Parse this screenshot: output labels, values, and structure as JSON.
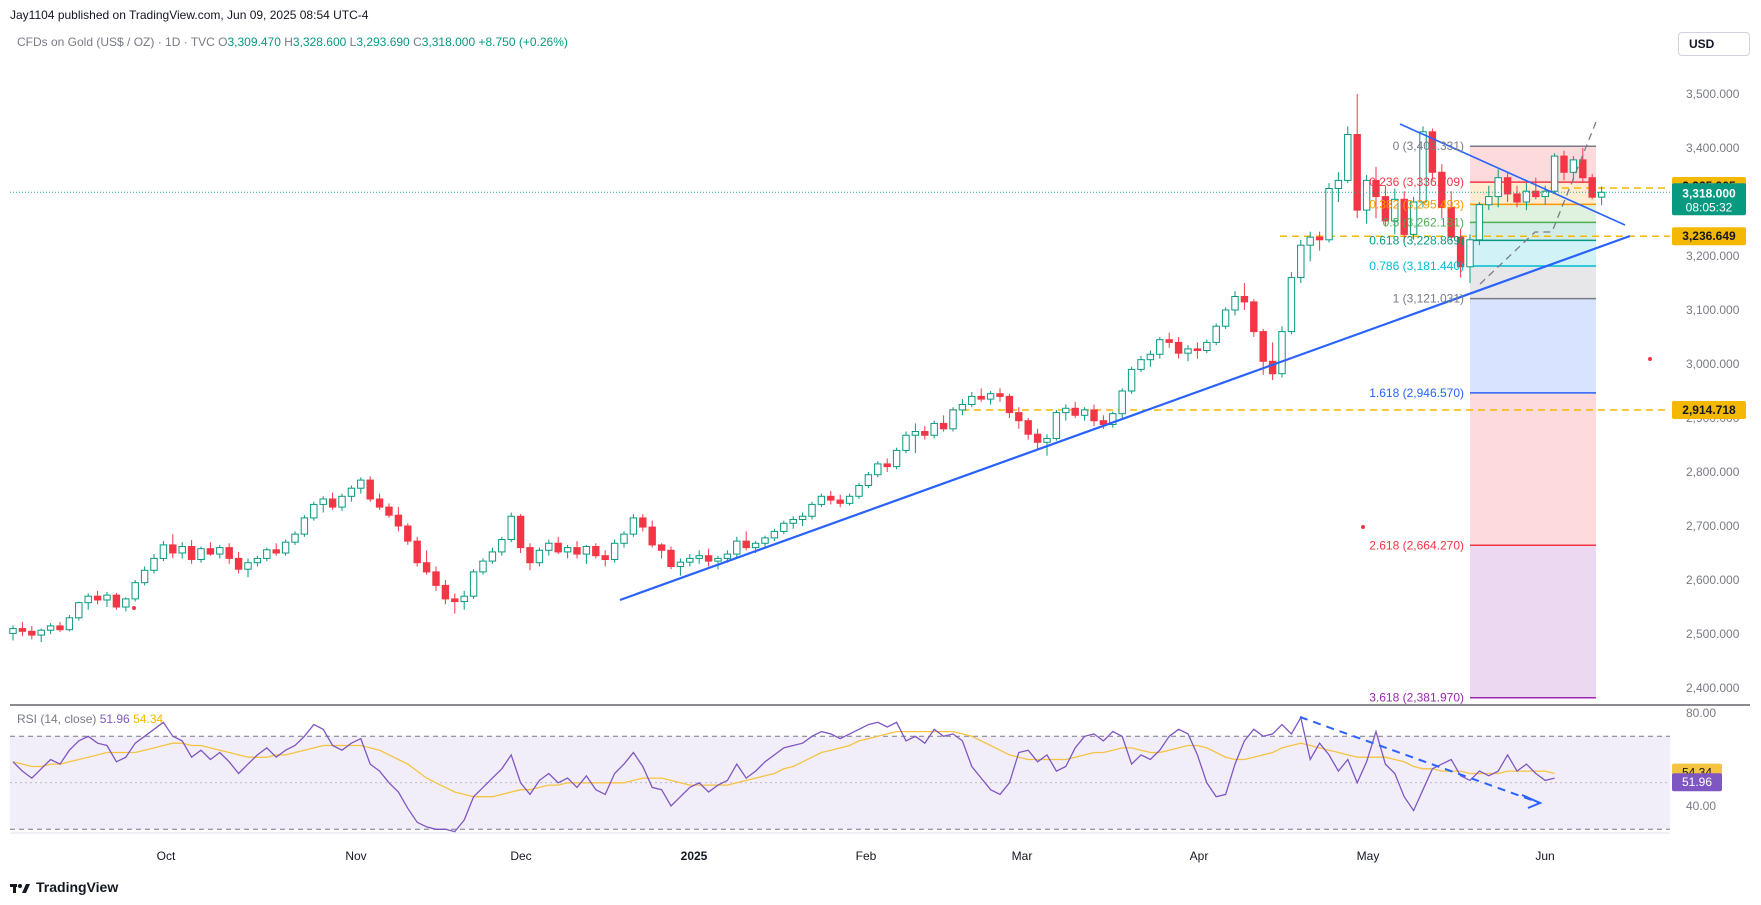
{
  "header": {
    "publisher": "Jay1104 published on TradingView.com, Jun 09, 2025 08:54 UTC-4",
    "symbol": "CFDs on Gold (US$ / OZ) · 1D · TVC",
    "o_label": "O",
    "o_val": "3,309.470",
    "h_label": "H",
    "h_val": "3,328.600",
    "l_label": "L",
    "l_val": "3,293.690",
    "c_label": "C",
    "c_val": "3,318.000",
    "change": "+8.750 (+0.26%)"
  },
  "currency": "USD",
  "footer": {
    "brand": "TradingView"
  },
  "colors": {
    "up": "#26a69a",
    "down": "#f23645",
    "trend": "#2962ff",
    "fib_gold": "#f5b800",
    "rsi": "#7e57c2",
    "rsi_ma": "#f5c342"
  },
  "chart_data": {
    "type": "candlestick",
    "ylim": [
      2340,
      3570
    ],
    "y_ticks": [
      "2,400.000",
      "2,500.000",
      "2,600.000",
      "2,700.000",
      "2,800.000",
      "2,900.000",
      "3,000.000",
      "3,100.000",
      "3,200.000",
      "3,300.000",
      "3,400.000",
      "3,500.000"
    ],
    "x_ticks": [
      "Oct",
      "Nov",
      "Dec",
      "2025",
      "Feb",
      "Mar",
      "Apr",
      "May",
      "Jun"
    ],
    "price_tags": [
      {
        "label": "3,325.905",
        "value": 3325.905,
        "style": "gold"
      },
      {
        "label": "3,318.000",
        "sub": "08:05:32",
        "value": 3318.0,
        "style": "last"
      },
      {
        "label": "3,236.649",
        "value": 3236.649,
        "style": "gold"
      },
      {
        "label": "2,914.718",
        "value": 2914.718,
        "style": "gold"
      }
    ],
    "fib_levels": [
      {
        "label": "0 (3,403.331)",
        "value": 3403.331,
        "color": "#787b86"
      },
      {
        "label": "0.236 (3,336.709)",
        "value": 3336.709,
        "color": "#f23645"
      },
      {
        "label": "0.382 (3,295.493)",
        "value": 3295.493,
        "color": "#ff9800"
      },
      {
        "label": "0.5 (3,262.181)",
        "value": 3262.181,
        "color": "#4caf50"
      },
      {
        "label": "0.618 (3,228.869)",
        "value": 3228.869,
        "color": "#089981"
      },
      {
        "label": "0.786 (3,181.440)",
        "value": 3181.44,
        "color": "#00bcd4"
      },
      {
        "label": "1 (3,121.031)",
        "value": 3121.031,
        "color": "#787b86"
      },
      {
        "label": "1.618 (2,946.570)",
        "value": 2946.57,
        "color": "#2962ff"
      },
      {
        "label": "2.618 (2,664.270)",
        "value": 2664.27,
        "color": "#f23645"
      },
      {
        "label": "3.618 (2,381.970)",
        "value": 2381.97,
        "color": "#9c27b0"
      }
    ],
    "horizontal_lines": [
      3325.905,
      3236.649,
      2914.718
    ],
    "candles": [
      [
        2501,
        2516,
        2488,
        2510
      ],
      [
        2510,
        2522,
        2496,
        2505
      ],
      [
        2505,
        2515,
        2490,
        2498
      ],
      [
        2498,
        2510,
        2485,
        2507
      ],
      [
        2507,
        2520,
        2500,
        2515
      ],
      [
        2515,
        2522,
        2504,
        2508
      ],
      [
        2508,
        2535,
        2505,
        2530
      ],
      [
        2530,
        2560,
        2525,
        2558
      ],
      [
        2558,
        2575,
        2545,
        2570
      ],
      [
        2570,
        2580,
        2555,
        2563
      ],
      [
        2563,
        2578,
        2550,
        2572
      ],
      [
        2572,
        2576,
        2545,
        2550
      ],
      [
        2550,
        2568,
        2542,
        2565
      ],
      [
        2565,
        2600,
        2560,
        2595
      ],
      [
        2595,
        2625,
        2590,
        2618
      ],
      [
        2618,
        2648,
        2612,
        2640
      ],
      [
        2640,
        2672,
        2635,
        2665
      ],
      [
        2665,
        2685,
        2640,
        2650
      ],
      [
        2650,
        2670,
        2640,
        2662
      ],
      [
        2662,
        2674,
        2630,
        2638
      ],
      [
        2638,
        2662,
        2632,
        2658
      ],
      [
        2658,
        2670,
        2645,
        2648
      ],
      [
        2648,
        2665,
        2640,
        2660
      ],
      [
        2660,
        2668,
        2630,
        2640
      ],
      [
        2640,
        2652,
        2612,
        2620
      ],
      [
        2620,
        2640,
        2605,
        2632
      ],
      [
        2632,
        2645,
        2625,
        2640
      ],
      [
        2640,
        2660,
        2635,
        2656
      ],
      [
        2656,
        2668,
        2645,
        2650
      ],
      [
        2650,
        2675,
        2645,
        2670
      ],
      [
        2670,
        2690,
        2665,
        2685
      ],
      [
        2685,
        2720,
        2680,
        2715
      ],
      [
        2715,
        2745,
        2710,
        2740
      ],
      [
        2740,
        2755,
        2725,
        2750
      ],
      [
        2750,
        2762,
        2730,
        2735
      ],
      [
        2735,
        2760,
        2728,
        2755
      ],
      [
        2755,
        2775,
        2745,
        2770
      ],
      [
        2770,
        2790,
        2760,
        2785
      ],
      [
        2785,
        2792,
        2745,
        2750
      ],
      [
        2750,
        2760,
        2730,
        2735
      ],
      [
        2735,
        2742,
        2715,
        2720
      ],
      [
        2720,
        2735,
        2690,
        2700
      ],
      [
        2700,
        2705,
        2665,
        2672
      ],
      [
        2672,
        2680,
        2625,
        2632
      ],
      [
        2632,
        2655,
        2610,
        2615
      ],
      [
        2615,
        2625,
        2580,
        2590
      ],
      [
        2590,
        2600,
        2555,
        2565
      ],
      [
        2565,
        2575,
        2538,
        2560
      ],
      [
        2560,
        2580,
        2545,
        2570
      ],
      [
        2570,
        2620,
        2565,
        2615
      ],
      [
        2615,
        2640,
        2610,
        2635
      ],
      [
        2635,
        2660,
        2630,
        2652
      ],
      [
        2652,
        2680,
        2645,
        2675
      ],
      [
        2675,
        2725,
        2670,
        2718
      ],
      [
        2718,
        2722,
        2650,
        2660
      ],
      [
        2660,
        2668,
        2618,
        2632
      ],
      [
        2632,
        2660,
        2625,
        2655
      ],
      [
        2655,
        2675,
        2645,
        2668
      ],
      [
        2668,
        2680,
        2648,
        2652
      ],
      [
        2652,
        2665,
        2640,
        2660
      ],
      [
        2660,
        2672,
        2640,
        2648
      ],
      [
        2648,
        2665,
        2630,
        2662
      ],
      [
        2662,
        2668,
        2640,
        2645
      ],
      [
        2645,
        2655,
        2625,
        2638
      ],
      [
        2638,
        2675,
        2632,
        2668
      ],
      [
        2668,
        2690,
        2660,
        2685
      ],
      [
        2685,
        2722,
        2680,
        2715
      ],
      [
        2715,
        2722,
        2690,
        2698
      ],
      [
        2698,
        2710,
        2660,
        2665
      ],
      [
        2665,
        2668,
        2640,
        2655
      ],
      [
        2655,
        2662,
        2620,
        2625
      ],
      [
        2625,
        2640,
        2608,
        2633
      ],
      [
        2633,
        2648,
        2625,
        2640
      ],
      [
        2640,
        2655,
        2630,
        2645
      ],
      [
        2645,
        2658,
        2625,
        2635
      ],
      [
        2635,
        2645,
        2620,
        2640
      ],
      [
        2640,
        2655,
        2632,
        2648
      ],
      [
        2648,
        2680,
        2640,
        2672
      ],
      [
        2672,
        2690,
        2655,
        2660
      ],
      [
        2660,
        2672,
        2650,
        2668
      ],
      [
        2668,
        2682,
        2660,
        2678
      ],
      [
        2678,
        2695,
        2672,
        2690
      ],
      [
        2690,
        2710,
        2685,
        2705
      ],
      [
        2705,
        2718,
        2695,
        2712
      ],
      [
        2712,
        2725,
        2700,
        2718
      ],
      [
        2718,
        2745,
        2712,
        2740
      ],
      [
        2740,
        2760,
        2735,
        2755
      ],
      [
        2755,
        2765,
        2740,
        2748
      ],
      [
        2748,
        2758,
        2735,
        2742
      ],
      [
        2742,
        2760,
        2738,
        2755
      ],
      [
        2755,
        2780,
        2750,
        2775
      ],
      [
        2775,
        2800,
        2770,
        2795
      ],
      [
        2795,
        2820,
        2790,
        2815
      ],
      [
        2815,
        2825,
        2800,
        2810
      ],
      [
        2810,
        2845,
        2805,
        2840
      ],
      [
        2840,
        2875,
        2835,
        2868
      ],
      [
        2868,
        2890,
        2835,
        2875
      ],
      [
        2875,
        2885,
        2860,
        2868
      ],
      [
        2868,
        2895,
        2862,
        2890
      ],
      [
        2890,
        2905,
        2875,
        2880
      ],
      [
        2880,
        2920,
        2875,
        2915
      ],
      [
        2915,
        2935,
        2905,
        2925
      ],
      [
        2925,
        2948,
        2920,
        2940
      ],
      [
        2940,
        2955,
        2930,
        2935
      ],
      [
        2935,
        2950,
        2925,
        2945
      ],
      [
        2945,
        2955,
        2930,
        2940
      ],
      [
        2940,
        2945,
        2900,
        2910
      ],
      [
        2910,
        2920,
        2880,
        2895
      ],
      [
        2895,
        2900,
        2860,
        2870
      ],
      [
        2870,
        2880,
        2840,
        2855
      ],
      [
        2855,
        2870,
        2830,
        2862
      ],
      [
        2862,
        2915,
        2858,
        2910
      ],
      [
        2910,
        2925,
        2895,
        2918
      ],
      [
        2918,
        2930,
        2900,
        2905
      ],
      [
        2905,
        2920,
        2895,
        2915
      ],
      [
        2915,
        2925,
        2885,
        2895
      ],
      [
        2895,
        2905,
        2880,
        2888
      ],
      [
        2888,
        2912,
        2882,
        2908
      ],
      [
        2908,
        2955,
        2900,
        2950
      ],
      [
        2950,
        2995,
        2945,
        2990
      ],
      [
        2990,
        3015,
        2985,
        3008
      ],
      [
        3008,
        3025,
        2995,
        3018
      ],
      [
        3018,
        3050,
        3010,
        3045
      ],
      [
        3045,
        3058,
        3030,
        3040
      ],
      [
        3040,
        3050,
        3010,
        3020
      ],
      [
        3020,
        3035,
        3005,
        3028
      ],
      [
        3028,
        3040,
        3010,
        3025
      ],
      [
        3025,
        3045,
        3020,
        3040
      ],
      [
        3040,
        3075,
        3035,
        3070
      ],
      [
        3070,
        3105,
        3065,
        3100
      ],
      [
        3100,
        3135,
        3090,
        3125
      ],
      [
        3125,
        3150,
        3100,
        3115
      ],
      [
        3115,
        3120,
        3050,
        3060
      ],
      [
        3060,
        3065,
        2980,
        3005
      ],
      [
        3005,
        3040,
        2970,
        2982
      ],
      [
        2982,
        3070,
        2975,
        3060
      ],
      [
        3060,
        3170,
        3055,
        3160
      ],
      [
        3160,
        3230,
        3150,
        3220
      ],
      [
        3220,
        3245,
        3190,
        3235
      ],
      [
        3235,
        3245,
        3210,
        3230
      ],
      [
        3230,
        3335,
        3225,
        3325
      ],
      [
        3325,
        3355,
        3300,
        3340
      ],
      [
        3340,
        3440,
        3335,
        3425
      ],
      [
        3425,
        3500,
        3270,
        3285
      ],
      [
        3285,
        3350,
        3260,
        3340
      ],
      [
        3340,
        3365,
        3270,
        3310
      ],
      [
        3310,
        3330,
        3255,
        3265
      ],
      [
        3265,
        3325,
        3240,
        3305
      ],
      [
        3305,
        3320,
        3225,
        3240
      ],
      [
        3240,
        3310,
        3230,
        3300
      ],
      [
        3300,
        3440,
        3290,
        3430
      ],
      [
        3430,
        3436,
        3340,
        3355
      ],
      [
        3355,
        3370,
        3270,
        3290
      ],
      [
        3290,
        3320,
        3228,
        3235
      ],
      [
        3235,
        3250,
        3160,
        3180
      ],
      [
        3180,
        3240,
        3150,
        3230
      ],
      [
        3230,
        3300,
        3220,
        3295
      ],
      [
        3295,
        3330,
        3285,
        3310
      ],
      [
        3310,
        3360,
        3290,
        3345
      ],
      [
        3345,
        3355,
        3300,
        3315
      ],
      [
        3315,
        3330,
        3290,
        3300
      ],
      [
        3300,
        3335,
        3285,
        3320
      ],
      [
        3320,
        3345,
        3305,
        3310
      ],
      [
        3310,
        3330,
        3295,
        3320
      ],
      [
        3320,
        3390,
        3315,
        3385
      ],
      [
        3385,
        3395,
        3340,
        3355
      ],
      [
        3355,
        3385,
        3340,
        3378
      ],
      [
        3378,
        3400,
        3335,
        3345
      ],
      [
        3345,
        3352,
        3305,
        3309
      ],
      [
        3309,
        3329,
        3294,
        3318
      ]
    ],
    "rsi": {
      "label": "RSI (14, close)",
      "value_label": "51.96",
      "ma_label": "54.34",
      "value": 51.96,
      "ma": 54.34,
      "ylim": [
        25,
        82
      ],
      "y_ticks": [
        "80.00",
        "40.00"
      ],
      "band": [
        30,
        70
      ],
      "values": [
        59,
        55,
        52,
        56,
        60,
        58,
        64,
        68,
        70,
        67,
        66,
        59,
        61,
        67,
        70,
        73,
        76,
        70,
        68,
        61,
        64,
        60,
        63,
        59,
        54,
        58,
        62,
        65,
        61,
        64,
        66,
        70,
        75,
        73,
        66,
        64,
        67,
        69,
        58,
        55,
        50,
        46,
        39,
        33,
        31,
        30,
        30,
        29,
        34,
        44,
        48,
        52,
        56,
        62,
        50,
        45,
        51,
        54,
        50,
        52,
        48,
        53,
        47,
        45,
        54,
        58,
        63,
        57,
        48,
        47,
        40,
        44,
        48,
        50,
        46,
        49,
        51,
        58,
        52,
        55,
        59,
        62,
        65,
        66,
        67,
        70,
        72,
        71,
        69,
        71,
        73,
        75,
        76,
        74,
        76,
        68,
        70,
        67,
        73,
        70,
        71,
        68,
        57,
        52,
        47,
        45,
        50,
        63,
        64,
        59,
        62,
        55,
        57,
        65,
        70,
        71,
        68,
        72,
        70,
        58,
        62,
        60,
        64,
        70,
        73,
        71,
        62,
        50,
        44,
        45,
        58,
        68,
        73,
        70,
        71,
        75,
        71,
        78,
        60,
        67,
        62,
        55,
        60,
        50,
        59,
        72,
        58,
        54,
        44,
        38,
        47,
        56,
        58,
        60,
        53,
        51,
        55,
        53,
        55,
        62,
        55,
        58,
        54,
        51,
        52
      ],
      "ma_values": [
        59,
        58,
        57,
        57,
        58,
        58,
        59,
        60,
        61,
        62,
        63,
        63,
        63,
        63,
        64,
        65,
        66,
        67,
        67,
        66,
        66,
        65,
        64,
        63,
        62,
        61,
        61,
        61,
        62,
        62,
        63,
        64,
        65,
        66,
        66,
        66,
        66,
        66,
        65,
        64,
        62,
        60,
        58,
        55,
        52,
        50,
        48,
        46,
        45,
        44,
        44,
        44,
        45,
        46,
        47,
        47,
        48,
        49,
        49,
        50,
        50,
        50,
        50,
        50,
        50,
        50,
        51,
        52,
        52,
        52,
        51,
        50,
        49,
        49,
        49,
        49,
        49,
        50,
        51,
        52,
        53,
        54,
        56,
        57,
        59,
        61,
        63,
        64,
        65,
        66,
        68,
        69,
        70,
        71,
        72,
        72,
        72,
        72,
        72,
        72,
        72,
        71,
        70,
        68,
        66,
        64,
        62,
        61,
        60,
        60,
        60,
        60,
        60,
        61,
        62,
        63,
        63,
        64,
        65,
        65,
        64,
        63,
        63,
        64,
        65,
        66,
        66,
        65,
        63,
        61,
        60,
        60,
        61,
        62,
        63,
        65,
        66,
        67,
        66,
        65,
        64,
        63,
        62,
        61,
        61,
        61,
        61,
        60,
        59,
        57,
        56,
        56,
        55,
        55,
        55,
        54,
        54,
        54,
        54,
        55,
        55,
        55,
        55,
        55,
        54
      ]
    }
  }
}
